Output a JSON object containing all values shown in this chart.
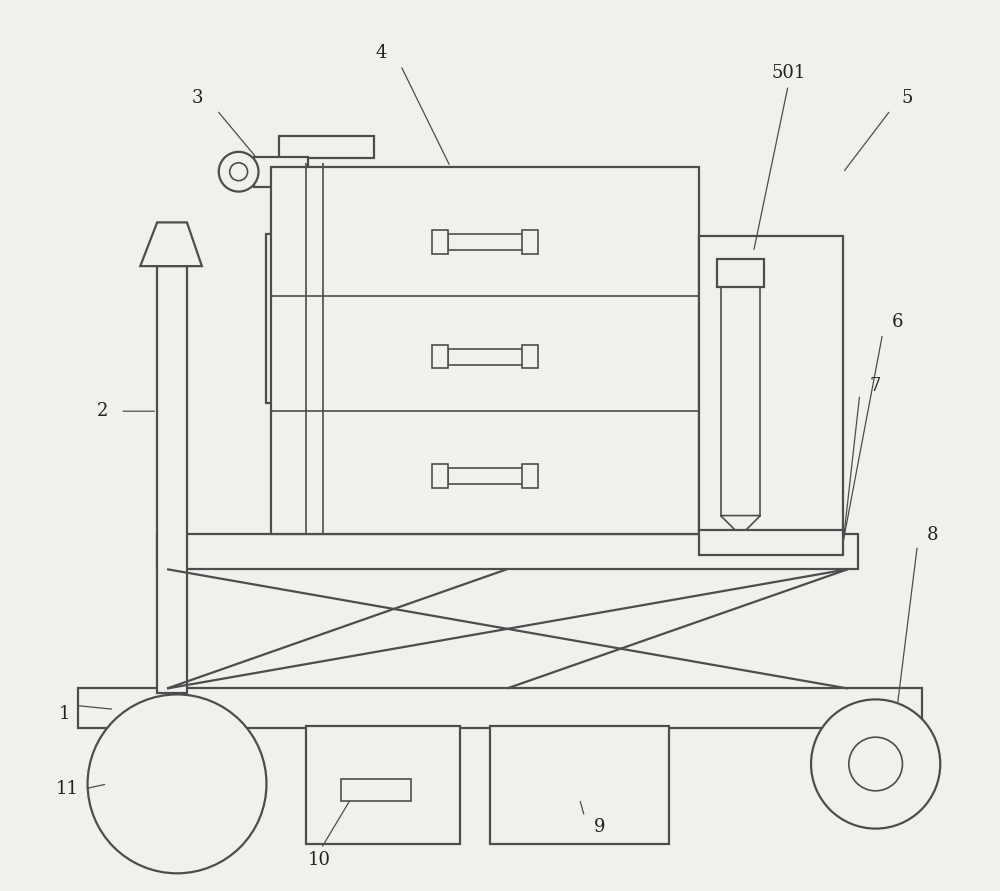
{
  "background_color": "#f2f0ed",
  "line_color": "#4d4d4d",
  "line_width": 1.6,
  "thin_lw": 1.2,
  "fig_width": 10.0,
  "fig_height": 8.91,
  "dpi": 100
}
